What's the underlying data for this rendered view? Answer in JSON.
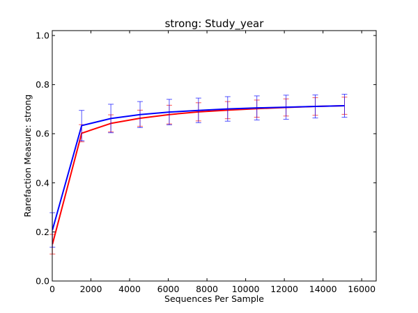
{
  "chart_data": {
    "type": "line",
    "title": "strong: Study_year",
    "xlabel": "Sequences Per Sample",
    "ylabel": "Rarefaction Measure: strong",
    "xlim": [
      0,
      16750
    ],
    "ylim": [
      0.0,
      1.02
    ],
    "x_ticks": [
      0,
      2000,
      4000,
      6000,
      8000,
      10000,
      12000,
      14000,
      16000
    ],
    "x_tick_labels": [
      "0",
      "2000",
      "4000",
      "6000",
      "8000",
      "10000",
      "12000",
      "14000",
      "16000"
    ],
    "y_ticks": [
      0.0,
      0.2,
      0.4,
      0.6,
      0.8,
      1.0
    ],
    "y_tick_labels": [
      "0.0",
      "0.2",
      "0.4",
      "0.6",
      "0.8",
      "1.0"
    ],
    "grid": false,
    "legend": "none",
    "x": [
      10,
      1520,
      3030,
      4540,
      6050,
      7560,
      9070,
      10580,
      12090,
      13600,
      15110
    ],
    "series": [
      {
        "color": "#0000ff",
        "values": [
          0.208,
          0.633,
          0.662,
          0.678,
          0.688,
          0.695,
          0.701,
          0.705,
          0.708,
          0.711,
          0.714
        ],
        "errors": [
          0.07,
          0.062,
          0.058,
          0.053,
          0.052,
          0.05,
          0.05,
          0.049,
          0.049,
          0.047,
          0.047
        ]
      },
      {
        "color": "#ff0000",
        "values": [
          0.15,
          0.602,
          0.642,
          0.663,
          0.678,
          0.689,
          0.696,
          0.702,
          0.707,
          0.711,
          0.714
        ],
        "errors": [
          0.04,
          0.035,
          0.035,
          0.033,
          0.038,
          0.037,
          0.035,
          0.035,
          0.035,
          0.036,
          0.035
        ]
      }
    ]
  }
}
